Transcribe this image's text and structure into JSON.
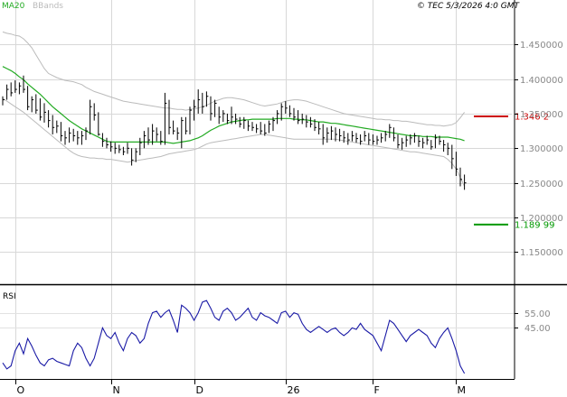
{
  "header": {
    "legend": [
      {
        "label": "MA20",
        "color": "#22aa22"
      },
      {
        "label": "BBands",
        "color": "#bbbbbb"
      }
    ],
    "title": "© TEC 5/3/2026 4:0 GMT"
  },
  "chart_data": {
    "type": "candlestick",
    "price_axis": {
      "range": [
        1.105,
        1.488
      ],
      "ticks": [
        {
          "value": 1.15,
          "label": "1.150000"
        },
        {
          "value": 1.2,
          "label": "1.200000"
        },
        {
          "value": 1.25,
          "label": "1.250000"
        },
        {
          "value": 1.3,
          "label": "1.300000"
        },
        {
          "value": 1.35,
          "label": "1.350000"
        },
        {
          "value": 1.4,
          "label": "1.400000"
        },
        {
          "value": 1.45,
          "label": "1.450000"
        }
      ]
    },
    "x_labels": [
      {
        "label": "O",
        "index": 3
      },
      {
        "label": "N",
        "index": 26
      },
      {
        "label": "D",
        "index": 46
      },
      {
        "label": "26",
        "index": 68
      },
      {
        "label": "F",
        "index": 89
      },
      {
        "label": "M",
        "index": 109
      }
    ],
    "levels": [
      {
        "value": 1.346,
        "label": "1.346 2",
        "color": "#cc0000"
      },
      {
        "value": 1.1899,
        "label": "1.189 99",
        "color": "#009900"
      }
    ],
    "bars": [
      {
        "high": 1.375,
        "low": 1.362,
        "close": 1.37
      },
      {
        "high": 1.392,
        "low": 1.37,
        "close": 1.385
      },
      {
        "high": 1.395,
        "low": 1.375,
        "close": 1.38
      },
      {
        "high": 1.398,
        "low": 1.38,
        "close": 1.385
      },
      {
        "high": 1.395,
        "low": 1.378,
        "close": 1.39
      },
      {
        "high": 1.405,
        "low": 1.38,
        "close": 1.385
      },
      {
        "high": 1.39,
        "low": 1.355,
        "close": 1.36
      },
      {
        "high": 1.375,
        "low": 1.352,
        "close": 1.37
      },
      {
        "high": 1.378,
        "low": 1.35,
        "close": 1.355
      },
      {
        "high": 1.372,
        "low": 1.34,
        "close": 1.345
      },
      {
        "high": 1.365,
        "low": 1.337,
        "close": 1.352
      },
      {
        "high": 1.355,
        "low": 1.33,
        "close": 1.34
      },
      {
        "high": 1.348,
        "low": 1.32,
        "close": 1.33
      },
      {
        "high": 1.34,
        "low": 1.322,
        "close": 1.332
      },
      {
        "high": 1.338,
        "low": 1.31,
        "close": 1.318
      },
      {
        "high": 1.325,
        "low": 1.305,
        "close": 1.315
      },
      {
        "high": 1.33,
        "low": 1.308,
        "close": 1.322
      },
      {
        "high": 1.328,
        "low": 1.31,
        "close": 1.318
      },
      {
        "high": 1.325,
        "low": 1.305,
        "close": 1.315
      },
      {
        "high": 1.325,
        "low": 1.305,
        "close": 1.318
      },
      {
        "high": 1.33,
        "low": 1.312,
        "close": 1.325
      },
      {
        "high": 1.37,
        "low": 1.32,
        "close": 1.36
      },
      {
        "high": 1.365,
        "low": 1.34,
        "close": 1.348
      },
      {
        "high": 1.352,
        "low": 1.318,
        "close": 1.32
      },
      {
        "high": 1.322,
        "low": 1.302,
        "close": 1.31
      },
      {
        "high": 1.315,
        "low": 1.3,
        "close": 1.305
      },
      {
        "high": 1.31,
        "low": 1.295,
        "close": 1.302
      },
      {
        "high": 1.308,
        "low": 1.292,
        "close": 1.3
      },
      {
        "high": 1.305,
        "low": 1.293,
        "close": 1.298
      },
      {
        "high": 1.302,
        "low": 1.29,
        "close": 1.295
      },
      {
        "high": 1.308,
        "low": 1.292,
        "close": 1.3
      },
      {
        "high": 1.3,
        "low": 1.275,
        "close": 1.283
      },
      {
        "high": 1.3,
        "low": 1.28,
        "close": 1.295
      },
      {
        "high": 1.315,
        "low": 1.29,
        "close": 1.308
      },
      {
        "high": 1.325,
        "low": 1.3,
        "close": 1.318
      },
      {
        "high": 1.33,
        "low": 1.305,
        "close": 1.312
      },
      {
        "high": 1.335,
        "low": 1.305,
        "close": 1.325
      },
      {
        "high": 1.33,
        "low": 1.31,
        "close": 1.32
      },
      {
        "high": 1.325,
        "low": 1.305,
        "close": 1.31
      },
      {
        "high": 1.38,
        "low": 1.305,
        "close": 1.365
      },
      {
        "high": 1.37,
        "low": 1.32,
        "close": 1.33
      },
      {
        "high": 1.34,
        "low": 1.32,
        "close": 1.325
      },
      {
        "high": 1.33,
        "low": 1.312,
        "close": 1.322
      },
      {
        "high": 1.345,
        "low": 1.3,
        "close": 1.34
      },
      {
        "high": 1.345,
        "low": 1.32,
        "close": 1.325
      },
      {
        "high": 1.36,
        "low": 1.32,
        "close": 1.355
      },
      {
        "high": 1.37,
        "low": 1.34,
        "close": 1.36
      },
      {
        "high": 1.385,
        "low": 1.35,
        "close": 1.37
      },
      {
        "high": 1.38,
        "low": 1.35,
        "close": 1.36
      },
      {
        "high": 1.382,
        "low": 1.36,
        "close": 1.375
      },
      {
        "high": 1.375,
        "low": 1.34,
        "close": 1.35
      },
      {
        "high": 1.37,
        "low": 1.345,
        "close": 1.365
      },
      {
        "high": 1.36,
        "low": 1.335,
        "close": 1.345
      },
      {
        "high": 1.355,
        "low": 1.338,
        "close": 1.35
      },
      {
        "high": 1.35,
        "low": 1.335,
        "close": 1.34
      },
      {
        "high": 1.36,
        "low": 1.335,
        "close": 1.345
      },
      {
        "high": 1.35,
        "low": 1.335,
        "close": 1.342
      },
      {
        "high": 1.345,
        "low": 1.33,
        "close": 1.335
      },
      {
        "high": 1.345,
        "low": 1.328,
        "close": 1.34
      },
      {
        "high": 1.34,
        "low": 1.325,
        "close": 1.332
      },
      {
        "high": 1.338,
        "low": 1.325,
        "close": 1.33
      },
      {
        "high": 1.335,
        "low": 1.322,
        "close": 1.328
      },
      {
        "high": 1.338,
        "low": 1.32,
        "close": 1.325
      },
      {
        "high": 1.335,
        "low": 1.318,
        "close": 1.322
      },
      {
        "high": 1.34,
        "low": 1.322,
        "close": 1.335
      },
      {
        "high": 1.345,
        "low": 1.325,
        "close": 1.34
      },
      {
        "high": 1.355,
        "low": 1.335,
        "close": 1.35
      },
      {
        "high": 1.365,
        "low": 1.34,
        "close": 1.36
      },
      {
        "high": 1.368,
        "low": 1.35,
        "close": 1.358
      },
      {
        "high": 1.362,
        "low": 1.345,
        "close": 1.35
      },
      {
        "high": 1.358,
        "low": 1.34,
        "close": 1.345
      },
      {
        "high": 1.355,
        "low": 1.335,
        "close": 1.34
      },
      {
        "high": 1.35,
        "low": 1.335,
        "close": 1.342
      },
      {
        "high": 1.348,
        "low": 1.33,
        "close": 1.338
      },
      {
        "high": 1.345,
        "low": 1.33,
        "close": 1.335
      },
      {
        "high": 1.342,
        "low": 1.325,
        "close": 1.33
      },
      {
        "high": 1.338,
        "low": 1.32,
        "close": 1.328
      },
      {
        "high": 1.335,
        "low": 1.305,
        "close": 1.315
      },
      {
        "high": 1.33,
        "low": 1.308,
        "close": 1.322
      },
      {
        "high": 1.332,
        "low": 1.312,
        "close": 1.325
      },
      {
        "high": 1.33,
        "low": 1.31,
        "close": 1.32
      },
      {
        "high": 1.328,
        "low": 1.31,
        "close": 1.318
      },
      {
        "high": 1.325,
        "low": 1.308,
        "close": 1.315
      },
      {
        "high": 1.322,
        "low": 1.305,
        "close": 1.312
      },
      {
        "high": 1.325,
        "low": 1.31,
        "close": 1.318
      },
      {
        "high": 1.322,
        "low": 1.308,
        "close": 1.314
      },
      {
        "high": 1.32,
        "low": 1.305,
        "close": 1.31
      },
      {
        "high": 1.325,
        "low": 1.31,
        "close": 1.318
      },
      {
        "high": 1.322,
        "low": 1.305,
        "close": 1.312
      },
      {
        "high": 1.32,
        "low": 1.305,
        "close": 1.31
      },
      {
        "high": 1.318,
        "low": 1.305,
        "close": 1.312
      },
      {
        "high": 1.322,
        "low": 1.308,
        "close": 1.315
      },
      {
        "high": 1.325,
        "low": 1.31,
        "close": 1.32
      },
      {
        "high": 1.335,
        "low": 1.315,
        "close": 1.33
      },
      {
        "high": 1.33,
        "low": 1.31,
        "close": 1.315
      },
      {
        "high": 1.32,
        "low": 1.3,
        "close": 1.305
      },
      {
        "high": 1.315,
        "low": 1.298,
        "close": 1.308
      },
      {
        "high": 1.318,
        "low": 1.302,
        "close": 1.312
      },
      {
        "high": 1.32,
        "low": 1.305,
        "close": 1.315
      },
      {
        "high": 1.322,
        "low": 1.308,
        "close": 1.318
      },
      {
        "high": 1.318,
        "low": 1.302,
        "close": 1.31
      },
      {
        "high": 1.315,
        "low": 1.3,
        "close": 1.308
      },
      {
        "high": 1.318,
        "low": 1.305,
        "close": 1.312
      },
      {
        "high": 1.312,
        "low": 1.298,
        "close": 1.302
      },
      {
        "high": 1.32,
        "low": 1.3,
        "close": 1.315
      },
      {
        "high": 1.318,
        "low": 1.305,
        "close": 1.31
      },
      {
        "high": 1.312,
        "low": 1.295,
        "close": 1.305
      },
      {
        "high": 1.308,
        "low": 1.29,
        "close": 1.3
      },
      {
        "high": 1.305,
        "low": 1.27,
        "close": 1.285
      },
      {
        "high": 1.295,
        "low": 1.26,
        "close": 1.27
      },
      {
        "high": 1.272,
        "low": 1.245,
        "close": 1.255
      },
      {
        "high": 1.262,
        "low": 1.24,
        "close": 1.25
      }
    ],
    "ma20": [
      1.418,
      1.415,
      1.412,
      1.408,
      1.403,
      1.399,
      1.393,
      1.388,
      1.383,
      1.378,
      1.372,
      1.366,
      1.36,
      1.355,
      1.35,
      1.345,
      1.34,
      1.336,
      1.332,
      1.328,
      1.325,
      1.322,
      1.319,
      1.316,
      1.313,
      1.31,
      1.309,
      1.309,
      1.309,
      1.309,
      1.309,
      1.309,
      1.309,
      1.309,
      1.309,
      1.309,
      1.309,
      1.309,
      1.309,
      1.309,
      1.308,
      1.307,
      1.308,
      1.309,
      1.31,
      1.311,
      1.313,
      1.315,
      1.318,
      1.322,
      1.326,
      1.329,
      1.332,
      1.334,
      1.336,
      1.338,
      1.339,
      1.34,
      1.341,
      1.341,
      1.342,
      1.342,
      1.342,
      1.342,
      1.342,
      1.342,
      1.343,
      1.343,
      1.343,
      1.343,
      1.342,
      1.342,
      1.341,
      1.341,
      1.34,
      1.339,
      1.338,
      1.338,
      1.337,
      1.336,
      1.336,
      1.335,
      1.334,
      1.333,
      1.332,
      1.331,
      1.33,
      1.329,
      1.328,
      1.327,
      1.326,
      1.325,
      1.324,
      1.323,
      1.322,
      1.321,
      1.32,
      1.319,
      1.318,
      1.318,
      1.318,
      1.317,
      1.317,
      1.317,
      1.316,
      1.316,
      1.316,
      1.316,
      1.315,
      1.314,
      1.313,
      1.311
    ],
    "bb_upper": [
      1.468,
      1.466,
      1.465,
      1.463,
      1.462,
      1.458,
      1.452,
      1.445,
      1.435,
      1.425,
      1.415,
      1.408,
      1.405,
      1.402,
      1.4,
      1.398,
      1.397,
      1.396,
      1.394,
      1.392,
      1.388,
      1.385,
      1.382,
      1.38,
      1.378,
      1.376,
      1.374,
      1.372,
      1.37,
      1.368,
      1.367,
      1.366,
      1.365,
      1.364,
      1.363,
      1.362,
      1.361,
      1.36,
      1.359,
      1.358,
      1.358,
      1.357,
      1.356,
      1.356,
      1.355,
      1.356,
      1.357,
      1.358,
      1.36,
      1.362,
      1.365,
      1.368,
      1.37,
      1.372,
      1.373,
      1.373,
      1.372,
      1.371,
      1.37,
      1.368,
      1.366,
      1.364,
      1.362,
      1.361,
      1.362,
      1.363,
      1.364,
      1.366,
      1.368,
      1.369,
      1.37,
      1.37,
      1.369,
      1.368,
      1.366,
      1.364,
      1.362,
      1.36,
      1.358,
      1.356,
      1.354,
      1.352,
      1.35,
      1.349,
      1.348,
      1.347,
      1.346,
      1.345,
      1.344,
      1.343,
      1.342,
      1.342,
      1.341,
      1.341,
      1.34,
      1.34,
      1.339,
      1.339,
      1.338,
      1.337,
      1.336,
      1.335,
      1.334,
      1.334,
      1.333,
      1.333,
      1.332,
      1.333,
      1.334,
      1.337,
      1.344,
      1.352
    ],
    "bb_lower": [
      1.372,
      1.368,
      1.364,
      1.36,
      1.356,
      1.352,
      1.347,
      1.342,
      1.337,
      1.332,
      1.327,
      1.322,
      1.317,
      1.312,
      1.307,
      1.302,
      1.297,
      1.293,
      1.29,
      1.288,
      1.287,
      1.286,
      1.286,
      1.285,
      1.285,
      1.284,
      1.284,
      1.283,
      1.282,
      1.281,
      1.28,
      1.281,
      1.282,
      1.283,
      1.284,
      1.285,
      1.286,
      1.287,
      1.288,
      1.29,
      1.292,
      1.293,
      1.294,
      1.295,
      1.296,
      1.297,
      1.298,
      1.3,
      1.303,
      1.306,
      1.308,
      1.309,
      1.31,
      1.311,
      1.312,
      1.313,
      1.314,
      1.315,
      1.316,
      1.317,
      1.318,
      1.319,
      1.32,
      1.32,
      1.319,
      1.318,
      1.317,
      1.316,
      1.315,
      1.314,
      1.313,
      1.313,
      1.313,
      1.313,
      1.313,
      1.313,
      1.313,
      1.313,
      1.313,
      1.313,
      1.313,
      1.312,
      1.311,
      1.31,
      1.309,
      1.308,
      1.307,
      1.306,
      1.305,
      1.304,
      1.303,
      1.302,
      1.301,
      1.3,
      1.299,
      1.298,
      1.297,
      1.296,
      1.295,
      1.295,
      1.294,
      1.293,
      1.292,
      1.291,
      1.29,
      1.289,
      1.288,
      1.284,
      1.278,
      1.27,
      1.258,
      1.245
    ],
    "rsi": {
      "label": "RSI",
      "range": [
        12,
        72
      ],
      "ticks": [
        {
          "value": 55,
          "label": "55.00"
        },
        {
          "value": 45,
          "label": "45.00"
        }
      ],
      "values": [
        22,
        18,
        20,
        30,
        35,
        28,
        38,
        33,
        27,
        22,
        20,
        24,
        25,
        23,
        22,
        21,
        20,
        30,
        35,
        32,
        25,
        20,
        25,
        35,
        45,
        40,
        38,
        42,
        35,
        30,
        38,
        42,
        40,
        35,
        38,
        48,
        55,
        56,
        52,
        55,
        57,
        50,
        42,
        60,
        58,
        55,
        50,
        55,
        62,
        63,
        58,
        52,
        50,
        56,
        58,
        55,
        50,
        52,
        55,
        58,
        52,
        50,
        55,
        53,
        52,
        50,
        48,
        55,
        56,
        52,
        55,
        54,
        48,
        44,
        42,
        44,
        46,
        44,
        42,
        44,
        45,
        42,
        40,
        42,
        45,
        44,
        48,
        44,
        42,
        40,
        35,
        30,
        40,
        50,
        48,
        44,
        40,
        36,
        40,
        42,
        44,
        42,
        40,
        35,
        32,
        38,
        42,
        45,
        38,
        30,
        20,
        15
      ]
    }
  }
}
